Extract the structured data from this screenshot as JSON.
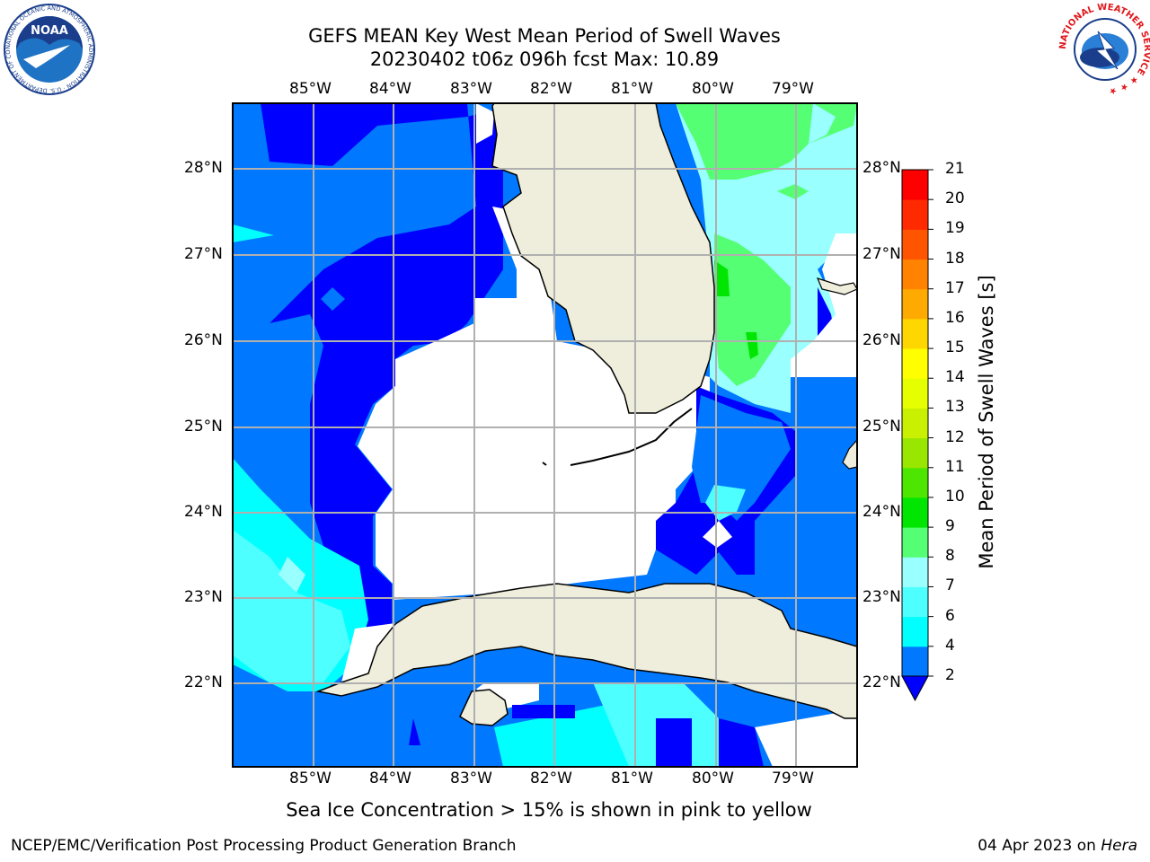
{
  "header": {
    "title_line1": "GEFS MEAN Key West Mean Period of Swell Waves",
    "title_line2": "20230402 t06z 096h fcst   Max: 10.89"
  },
  "map": {
    "lon_ticks": [
      "85°W",
      "84°W",
      "83°W",
      "82°W",
      "81°W",
      "80°W",
      "79°W"
    ],
    "lat_ticks": [
      "28°N",
      "27°N",
      "26°N",
      "25°N",
      "24°N",
      "23°N",
      "22°N"
    ],
    "land_color": "#efeedc",
    "grid_color": "#b0b0b0"
  },
  "colorbar": {
    "title": "Mean Period of Swell Waves [s]",
    "levels": [
      "2",
      "4",
      "6",
      "7",
      "8",
      "9",
      "10",
      "11",
      "12",
      "13",
      "14",
      "15",
      "16",
      "17",
      "18",
      "19",
      "20",
      "21"
    ],
    "colors": [
      "#0000ff",
      "#0078ff",
      "#00ffff",
      "#4dffff",
      "#99ffff",
      "#54ff74",
      "#00e600",
      "#4de600",
      "#99e600",
      "#c8f000",
      "#e6ff00",
      "#ffff00",
      "#ffd700",
      "#ffaa00",
      "#ff8200",
      "#ff5500",
      "#ff2a00",
      "#ff0000"
    ]
  },
  "footer": {
    "note": "Sea Ice Concentration > 15% is shown in pink to yellow",
    "credit_left": "NCEP/EMC/Verification Post Processing Product Generation Branch",
    "credit_date": "04 Apr 2023 on ",
    "credit_machine": "Hera"
  },
  "logos": {
    "noaa_text": "NOAA",
    "noaa_ring_text": "NATIONAL OCEANIC AND ATMOSPHERIC ADMINISTRATION · U.S. DEPARTMENT OF COMMERCE ·",
    "nws_ring_text": "NATIONAL WEATHER SERVICE ★ ★ ★"
  }
}
